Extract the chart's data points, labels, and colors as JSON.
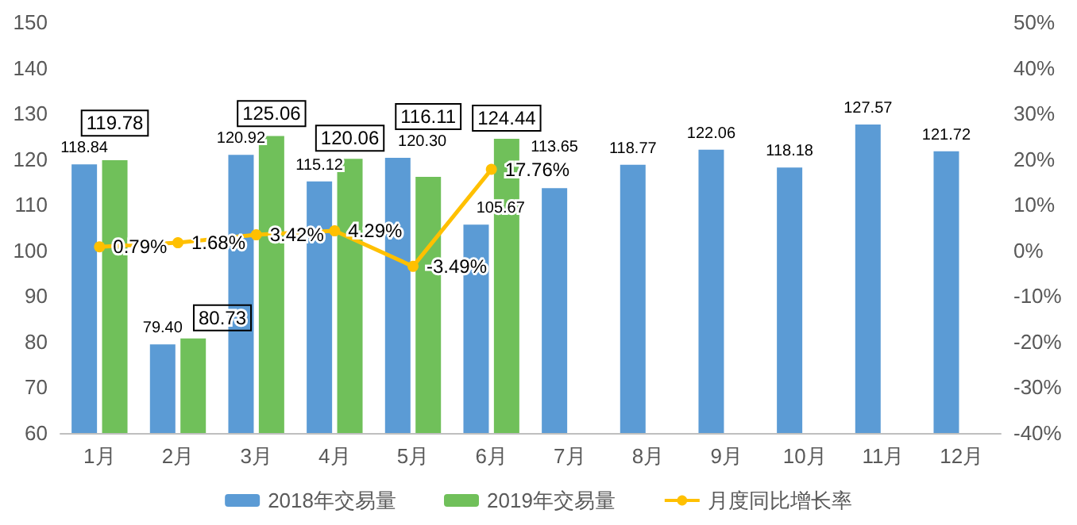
{
  "chart_data": {
    "type": "bar",
    "categories": [
      "1月",
      "2月",
      "3月",
      "4月",
      "5月",
      "6月",
      "7月",
      "8月",
      "9月",
      "10月",
      "11月",
      "12月"
    ],
    "series": [
      {
        "name": "2018年交易量",
        "color": "#5b9bd5",
        "values": [
          118.84,
          79.4,
          120.92,
          115.12,
          120.3,
          105.67,
          113.65,
          118.77,
          122.06,
          118.18,
          127.57,
          121.72
        ],
        "value_labels": [
          "118.84",
          "79.40",
          "120.92",
          "115.12",
          "120.30",
          "105.67",
          "113.65",
          "118.77",
          "122.06",
          "118.18",
          "127.57",
          "121.72"
        ]
      },
      {
        "name": "2019年交易量",
        "color": "#70c05a",
        "values": [
          119.78,
          80.73,
          125.06,
          120.06,
          116.11,
          124.44,
          null,
          null,
          null,
          null,
          null,
          null
        ],
        "value_labels": [
          "119.78",
          "80.73",
          "125.06",
          "120.06",
          "116.11",
          "124.44",
          null,
          null,
          null,
          null,
          null,
          null
        ]
      },
      {
        "name": "月度同比增长率",
        "type": "line",
        "axis": "y2",
        "color": "#ffc000",
        "marker": "circle",
        "values": [
          0.79,
          1.68,
          3.42,
          4.29,
          -3.49,
          17.76,
          null,
          null,
          null,
          null,
          null,
          null
        ],
        "value_labels": [
          "0.79%",
          "1.68%",
          "3.42%",
          "4.29%",
          "-3.49%",
          "17.76%",
          null,
          null,
          null,
          null,
          null,
          null
        ]
      }
    ],
    "ylim": [
      60,
      150
    ],
    "yticks": [
      60,
      70,
      80,
      90,
      100,
      110,
      120,
      130,
      140,
      150
    ],
    "y2lim": [
      -40,
      50
    ],
    "y2ticks": [
      {
        "value": -40,
        "label": "-40%"
      },
      {
        "value": -30,
        "label": "-30%"
      },
      {
        "value": -20,
        "label": "-20%"
      },
      {
        "value": -10,
        "label": "-10%"
      },
      {
        "value": 0,
        "label": "0%"
      },
      {
        "value": 10,
        "label": "10%"
      },
      {
        "value": 20,
        "label": "20%"
      },
      {
        "value": 30,
        "label": "30%"
      },
      {
        "value": 40,
        "label": "40%"
      },
      {
        "value": 50,
        "label": "50%"
      }
    ],
    "grid": false,
    "legend": "bottom"
  }
}
